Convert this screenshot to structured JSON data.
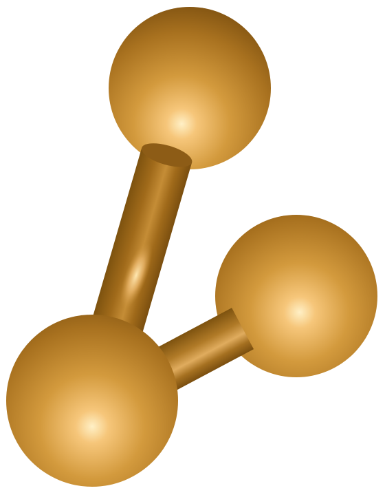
{
  "scene": {
    "subject": "molecule-model",
    "atoms": [
      {
        "id": "top",
        "kind": "atom"
      },
      {
        "id": "right",
        "kind": "atom"
      },
      {
        "id": "bottom-left",
        "kind": "atom"
      }
    ],
    "bonds": [
      {
        "from": "bottom-left",
        "to": "top"
      },
      {
        "from": "bottom-left",
        "to": "right"
      }
    ]
  },
  "colors": {
    "background": "#ffffff",
    "highlight": "#ffe3a6",
    "mid": "#d39a3d",
    "base": "#9a6616",
    "shadow": "#6a420a"
  }
}
